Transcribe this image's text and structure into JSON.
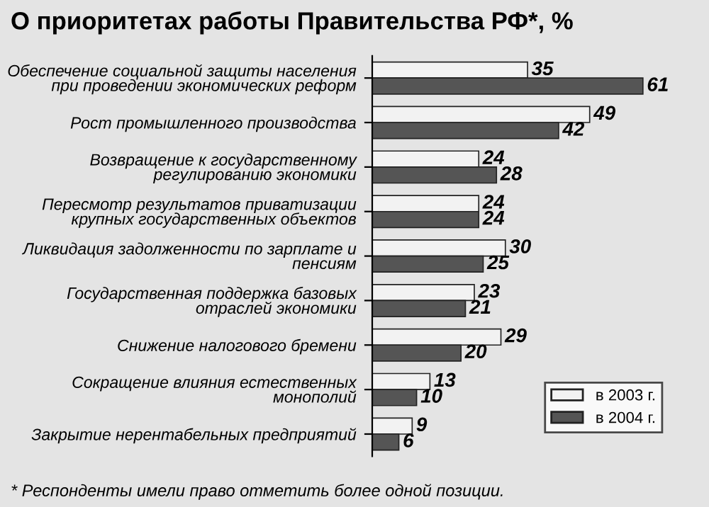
{
  "chart_data": {
    "type": "bar",
    "orientation": "horizontal",
    "title": "О приоритетах работы Правительства РФ*, %",
    "categories": [
      "Обеспечение социальной защиты населения\nпри проведении экономических реформ",
      "Рост промышленного производства",
      "Возвращение к государственному\nрегулированию экономики",
      "Пересмотр результатов приватизации\nкрупных государственных объектов",
      "Ликвидация задолженности по зарплате и\nпенсиям",
      "Государственная поддержка базовых\nотраслей экономики",
      "Снижение налогового бремени",
      "Сокращение влияния естественных\nмонополий",
      "Закрытие нерентабельных предприятий"
    ],
    "series": [
      {
        "name": "в 2003 г.",
        "color": "#f2f2f2",
        "values": [
          35,
          49,
          24,
          24,
          30,
          23,
          29,
          13,
          9
        ]
      },
      {
        "name": "в 2004 г.",
        "color": "#555555",
        "values": [
          61,
          42,
          28,
          24,
          25,
          21,
          20,
          10,
          6
        ]
      }
    ],
    "data_labels": true,
    "legend": "bottom right",
    "grid": false,
    "annotations": [
      "* Респонденты имели право отметить более одной позиции."
    ]
  }
}
